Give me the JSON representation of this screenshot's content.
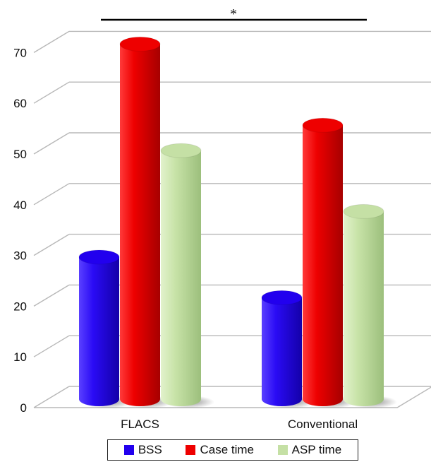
{
  "chart_data": {
    "type": "bar",
    "categories": [
      "FLACS",
      "Conventional"
    ],
    "series": [
      {
        "name": "BSS",
        "values": [
          28,
          20
        ],
        "color": "#2200ee"
      },
      {
        "name": "Case time",
        "values": [
          70,
          54
        ],
        "color": "#ee0000"
      },
      {
        "name": "ASP time",
        "values": [
          49,
          37
        ],
        "color": "#c5e0a5"
      }
    ],
    "title": "",
    "xlabel": "",
    "ylabel": "",
    "ylim": [
      0,
      70
    ],
    "yticks": [
      "0",
      "10",
      "20",
      "30",
      "40",
      "50",
      "60",
      "70"
    ],
    "grid": true,
    "legend_position": "bottom",
    "annotation": {
      "text": "*",
      "spans": "FLACS Case time to Conventional Case time"
    }
  }
}
